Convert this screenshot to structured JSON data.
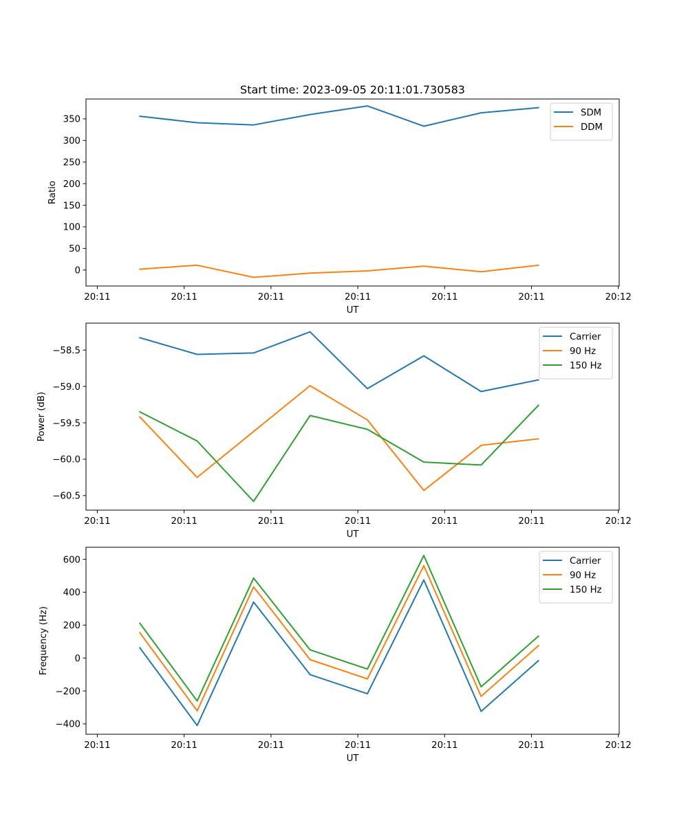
{
  "figure": {
    "title": "Start time: 2023-09-05 20:11:01.730583"
  },
  "chart_data": [
    {
      "type": "line",
      "title": "Start time: 2023-09-05 20:11:01.730583",
      "xlabel": "UT",
      "ylabel": "Ratio",
      "x_unit": "seconds after 20:11:00",
      "x": [
        4.9,
        11.5,
        18.0,
        24.5,
        31.1,
        37.6,
        44.2,
        50.8
      ],
      "xlim": [
        -1.3,
        60.1
      ],
      "xticks": [
        0,
        10,
        20,
        30,
        40,
        50,
        60
      ],
      "xtick_labels": [
        "20:11",
        "20:11",
        "20:11",
        "20:11",
        "20:11",
        "20:11",
        "20:12"
      ],
      "ylim": [
        -37,
        396
      ],
      "yticks": [
        0,
        50,
        100,
        150,
        200,
        250,
        300,
        350
      ],
      "ytick_labels": [
        "0",
        "50",
        "100",
        "150",
        "200",
        "250",
        "300",
        "350"
      ],
      "grid": false,
      "legend": "top-right",
      "series": [
        {
          "name": "SDM",
          "color": "#1f77b4",
          "values": [
            356,
            341,
            336,
            360,
            380,
            333,
            364,
            376
          ]
        },
        {
          "name": "DDM",
          "color": "#ff7f0e",
          "values": [
            2,
            11,
            -17,
            -7,
            -2,
            9,
            -4,
            11
          ]
        }
      ]
    },
    {
      "type": "line",
      "title": "",
      "xlabel": "UT",
      "ylabel": "Power (dB)",
      "x_unit": "seconds after 20:11:00",
      "x": [
        4.9,
        11.5,
        18.0,
        24.5,
        31.1,
        37.6,
        44.2,
        50.8
      ],
      "xlim": [
        -1.3,
        60.1
      ],
      "xticks": [
        0,
        10,
        20,
        30,
        40,
        50,
        60
      ],
      "xtick_labels": [
        "20:11",
        "20:11",
        "20:11",
        "20:11",
        "20:11",
        "20:11",
        "20:12"
      ],
      "ylim": [
        -60.7,
        -58.13
      ],
      "yticks": [
        -60.5,
        -60.0,
        -59.5,
        -59.0,
        -58.5
      ],
      "ytick_labels": [
        "−60.5",
        "−60.0",
        "−59.5",
        "−59.0",
        "−58.5"
      ],
      "grid": false,
      "legend": "top-right",
      "series": [
        {
          "name": "Carrier",
          "color": "#1f77b4",
          "values": [
            -58.33,
            -58.56,
            -58.54,
            -58.25,
            -59.03,
            -58.58,
            -59.07,
            -58.91
          ]
        },
        {
          "name": "90 Hz",
          "color": "#ff7f0e",
          "values": [
            -59.42,
            -60.25,
            -59.62,
            -58.99,
            -59.46,
            -60.43,
            -59.81,
            -59.72
          ]
        },
        {
          "name": "150 Hz",
          "color": "#2ca02c",
          "values": [
            -59.35,
            -59.75,
            -60.58,
            -59.4,
            -59.59,
            -60.04,
            -60.08,
            -59.26
          ]
        }
      ]
    },
    {
      "type": "line",
      "title": "",
      "xlabel": "UT",
      "ylabel": "Frequency (Hz)",
      "x_unit": "seconds after 20:11:00",
      "x": [
        4.9,
        11.5,
        18.0,
        24.5,
        31.1,
        37.6,
        44.2,
        50.8
      ],
      "xlim": [
        -1.3,
        60.1
      ],
      "xticks": [
        0,
        10,
        20,
        30,
        40,
        50,
        60
      ],
      "xtick_labels": [
        "20:11",
        "20:11",
        "20:11",
        "20:11",
        "20:11",
        "20:11",
        "20:12"
      ],
      "ylim": [
        -463,
        673
      ],
      "yticks": [
        -400,
        -200,
        0,
        200,
        400,
        600
      ],
      "ytick_labels": [
        "−400",
        "−200",
        "0",
        "200",
        "400",
        "600"
      ],
      "grid": false,
      "legend": "top-right",
      "series": [
        {
          "name": "Carrier",
          "color": "#1f77b4",
          "values": [
            62,
            -410,
            340,
            -101,
            -217,
            474,
            -324,
            -16
          ]
        },
        {
          "name": "90 Hz",
          "color": "#ff7f0e",
          "values": [
            154,
            -321,
            432,
            -10,
            -127,
            561,
            -233,
            75
          ]
        },
        {
          "name": "150 Hz",
          "color": "#2ca02c",
          "values": [
            211,
            -261,
            486,
            50,
            -67,
            623,
            -175,
            133
          ]
        }
      ]
    }
  ]
}
